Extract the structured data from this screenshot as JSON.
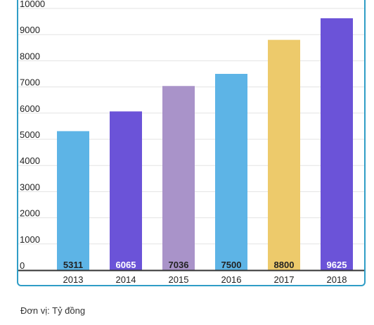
{
  "chart_data": {
    "type": "bar",
    "categories": [
      "2013",
      "2014",
      "2015",
      "2016",
      "2017",
      "2018"
    ],
    "values": [
      5311,
      6065,
      7036,
      7500,
      8800,
      9625
    ],
    "value_labels": [
      "5311",
      "6065",
      "7036",
      "7500",
      "8800",
      "9625"
    ],
    "bar_colors": [
      "#5db4e6",
      "#6b53d8",
      "#a993c9",
      "#5db4e6",
      "#edca6b",
      "#6b53d8"
    ],
    "value_label_colors": [
      "#222222",
      "#ffffff",
      "#222222",
      "#222222",
      "#222222",
      "#ffffff"
    ],
    "y_ticks": [
      "0",
      "1000",
      "2000",
      "3000",
      "4000",
      "5000",
      "6000",
      "7000",
      "8000",
      "9000",
      "10000"
    ],
    "ylim": [
      0,
      10000
    ],
    "grid": true,
    "title": "",
    "xlabel": "",
    "ylabel": ""
  },
  "footer": {
    "unit_note": "Đơn vị: Tỷ đồng"
  }
}
